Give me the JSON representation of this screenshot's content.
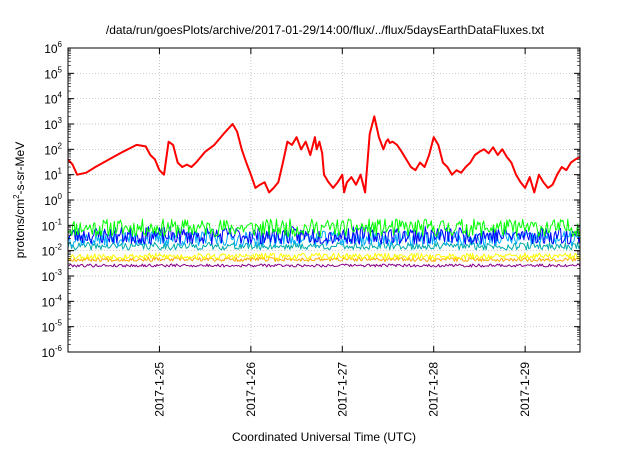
{
  "chart_data": {
    "type": "line",
    "title": "/data/run/goesPlots/archive/2017-01-29/14:00/flux/../flux/5daysEarthDataFluxes.txt",
    "xlabel": "Coordinated Universal Time (UTC)",
    "ylabel_parts": [
      "protons/cm",
      "2",
      "-s-sr-MeV"
    ],
    "xlim": [
      0,
      5.6
    ],
    "ylim_exp": [
      -6,
      6
    ],
    "y_scale": "log",
    "grid": true,
    "x_ticks": [
      {
        "x": 1,
        "label": "2017-1-25"
      },
      {
        "x": 2,
        "label": "2017-1-26"
      },
      {
        "x": 3,
        "label": "2017-1-27"
      },
      {
        "x": 4,
        "label": "2017-1-28"
      },
      {
        "x": 5,
        "label": "2017-1-29"
      }
    ],
    "y_ticks": [
      {
        "exp": 6,
        "base": "10",
        "sup": "6"
      },
      {
        "exp": 5,
        "base": "10",
        "sup": "5"
      },
      {
        "exp": 4,
        "base": "10",
        "sup": "4"
      },
      {
        "exp": 3,
        "base": "10",
        "sup": "3"
      },
      {
        "exp": 2,
        "base": "10",
        "sup": "2"
      },
      {
        "exp": 1,
        "base": "10",
        "sup": "1"
      },
      {
        "exp": 0,
        "base": "10",
        "sup": "0"
      },
      {
        "exp": -1,
        "base": "10",
        "sup": "-1"
      },
      {
        "exp": -2,
        "base": "10",
        "sup": "-2"
      },
      {
        "exp": -3,
        "base": "10",
        "sup": "-3"
      },
      {
        "exp": -4,
        "base": "10",
        "sup": "-4"
      },
      {
        "exp": -5,
        "base": "10",
        "sup": "-5"
      },
      {
        "exp": -6,
        "base": "10",
        "sup": "-6"
      }
    ],
    "series": [
      {
        "color": "#ff0000",
        "width": 2,
        "x": [
          0,
          0.05,
          0.1,
          0.2,
          0.3,
          0.45,
          0.6,
          0.75,
          0.85,
          0.9,
          0.95,
          1.0,
          1.05,
          1.1,
          1.15,
          1.2,
          1.25,
          1.3,
          1.35,
          1.4,
          1.5,
          1.6,
          1.7,
          1.8,
          1.85,
          1.9,
          1.95,
          2.0,
          2.05,
          2.1,
          2.15,
          2.2,
          2.25,
          2.3,
          2.35,
          2.4,
          2.45,
          2.5,
          2.55,
          2.6,
          2.65,
          2.7,
          2.72,
          2.75,
          2.78,
          2.8,
          2.85,
          2.9,
          2.95,
          3.0,
          3.02,
          3.05,
          3.1,
          3.15,
          3.2,
          3.25,
          3.3,
          3.35,
          3.4,
          3.45,
          3.48,
          3.5,
          3.52,
          3.55,
          3.6,
          3.65,
          3.7,
          3.75,
          3.8,
          3.85,
          3.9,
          3.95,
          4.0,
          4.05,
          4.1,
          4.15,
          4.2,
          4.25,
          4.3,
          4.35,
          4.4,
          4.45,
          4.5,
          4.55,
          4.6,
          4.65,
          4.7,
          4.75,
          4.8,
          4.85,
          4.9,
          4.95,
          5.0,
          5.05,
          5.1,
          5.15,
          5.2,
          5.25,
          5.3,
          5.35,
          5.4,
          5.45,
          5.5,
          5.55,
          5.6
        ],
        "y": [
          40,
          25,
          10,
          12,
          20,
          40,
          80,
          150,
          130,
          60,
          40,
          15,
          10,
          200,
          150,
          30,
          20,
          25,
          20,
          30,
          80,
          150,
          400,
          1000,
          500,
          100,
          30,
          10,
          3,
          4,
          5,
          2,
          3,
          5,
          30,
          200,
          150,
          300,
          100,
          200,
          60,
          300,
          100,
          200,
          70,
          10,
          5,
          3,
          5,
          10,
          2,
          5,
          8,
          4,
          10,
          2,
          400,
          2000,
          300,
          100,
          200,
          250,
          180,
          200,
          150,
          80,
          40,
          20,
          15,
          30,
          20,
          60,
          300,
          150,
          30,
          20,
          10,
          15,
          12,
          20,
          30,
          60,
          80,
          100,
          70,
          120,
          60,
          100,
          50,
          30,
          10,
          5,
          3,
          8,
          2,
          10,
          5,
          3,
          4,
          10,
          20,
          15,
          30,
          40,
          50
        ]
      },
      {
        "color": "#00ff00",
        "width": 1,
        "level": 0.08,
        "noise": 0.35,
        "seed": 11
      },
      {
        "color": "#0000ff",
        "width": 1,
        "level": 0.04,
        "noise": 0.35,
        "seed": 23
      },
      {
        "color": "#00aaff",
        "width": 1,
        "level": 0.03,
        "noise": 0.3,
        "seed": 37
      },
      {
        "color": "#00aaaa",
        "width": 1,
        "level": 0.015,
        "noise": 0.15,
        "seed": 41
      },
      {
        "color": "#ffff00",
        "width": 1,
        "level": 0.006,
        "noise": 0.12,
        "seed": 53
      },
      {
        "color": "#ffaa00",
        "width": 1,
        "level": 0.0045,
        "noise": 0.08,
        "seed": 67
      },
      {
        "color": "#880088",
        "width": 1,
        "level": 0.0026,
        "noise": 0.06,
        "seed": 79
      }
    ]
  }
}
